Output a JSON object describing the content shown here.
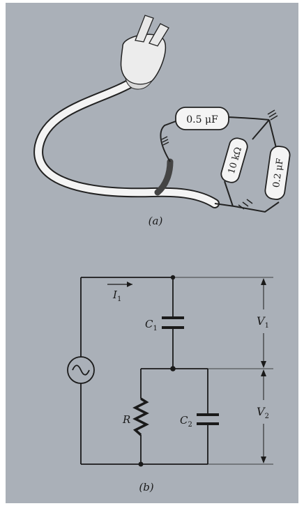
{
  "part_a": {
    "caption": "(a)",
    "capacitor_top_label": "0.5 μF",
    "resistor_label": "10 kΩ",
    "capacitor_right_label": "0.2 μF"
  },
  "part_b": {
    "caption": "(b)",
    "current_label": "I",
    "current_sub": "1",
    "c1_label": "C",
    "c1_sub": "1",
    "c2_label": "C",
    "c2_sub": "2",
    "r_label": "R",
    "v1_label": "V",
    "v1_sub": "1",
    "v2_label": "V",
    "v2_sub": "2"
  }
}
